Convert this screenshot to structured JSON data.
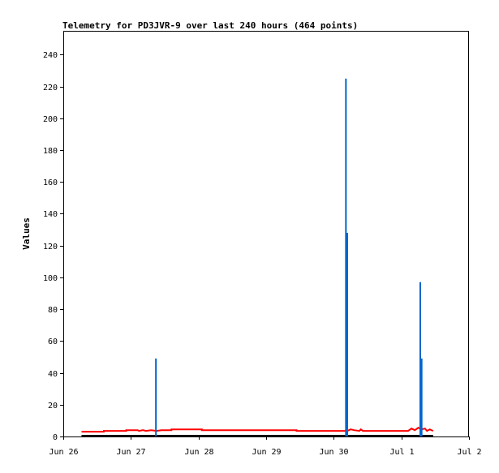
{
  "chart_data": {
    "type": "bar",
    "title": "Telemetry for PD3JVR-9 over last 240 hours (464 points)",
    "xlabel": "",
    "ylabel": "Values",
    "xlim": [
      0,
      6
    ],
    "ylim": [
      0,
      255
    ],
    "x_ticks": [
      {
        "x": 0,
        "label": "Jun 26"
      },
      {
        "x": 1,
        "label": "Jun 27"
      },
      {
        "x": 2,
        "label": "Jun 28"
      },
      {
        "x": 3,
        "label": "Jun 29"
      },
      {
        "x": 4,
        "label": "Jun 30"
      },
      {
        "x": 5,
        "label": "Jul 1"
      },
      {
        "x": 6,
        "label": "Jul 2"
      }
    ],
    "y_ticks": [
      0,
      20,
      40,
      60,
      80,
      100,
      120,
      140,
      160,
      180,
      200,
      220,
      240
    ],
    "grid": false,
    "series": [
      {
        "color": "#ff0000",
        "style": "line",
        "points": [
          [
            0.27,
            3
          ],
          [
            0.6,
            3
          ],
          [
            0.6,
            3.5
          ],
          [
            0.93,
            3.5
          ],
          [
            0.93,
            4
          ],
          [
            1.1,
            4
          ],
          [
            1.12,
            3.5
          ],
          [
            1.18,
            4
          ],
          [
            1.22,
            3.5
          ],
          [
            1.3,
            4
          ],
          [
            1.38,
            3.5
          ],
          [
            1.45,
            4
          ],
          [
            1.6,
            4
          ],
          [
            1.6,
            4.5
          ],
          [
            2.05,
            4.5
          ],
          [
            2.05,
            4
          ],
          [
            2.5,
            4
          ],
          [
            3.45,
            4
          ],
          [
            3.45,
            3.5
          ],
          [
            4.2,
            3.5
          ],
          [
            4.25,
            4.5
          ],
          [
            4.3,
            4
          ],
          [
            4.38,
            3.5
          ],
          [
            4.4,
            4.5
          ],
          [
            4.43,
            3.5
          ],
          [
            4.6,
            3.5
          ],
          [
            5.1,
            3.5
          ],
          [
            5.15,
            5
          ],
          [
            5.2,
            4
          ],
          [
            5.25,
            5.5
          ],
          [
            5.3,
            4.5
          ],
          [
            5.35,
            5
          ],
          [
            5.38,
            3.5
          ],
          [
            5.42,
            4.5
          ],
          [
            5.47,
            3.5
          ]
        ]
      },
      {
        "color": "#000000",
        "style": "line",
        "points": [
          [
            0.27,
            0.5
          ],
          [
            5.47,
            0.5
          ]
        ]
      },
      {
        "color": "#0066cc",
        "style": "bars",
        "points": [
          [
            1.37,
            49
          ],
          [
            4.18,
            225
          ],
          [
            4.2,
            128
          ],
          [
            5.28,
            97
          ],
          [
            5.3,
            49
          ]
        ]
      }
    ]
  }
}
